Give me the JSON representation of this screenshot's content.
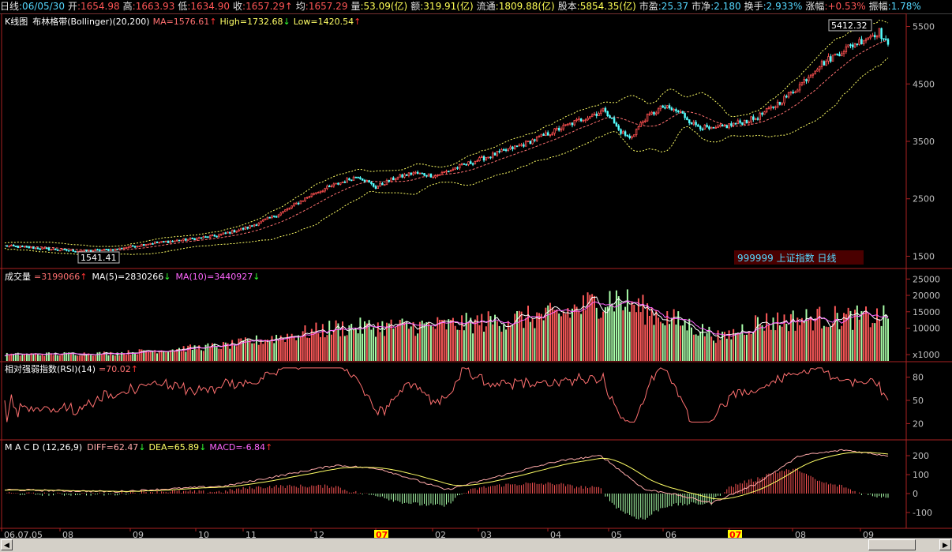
{
  "topbar": [
    {
      "label": "日线",
      "value": ":06/05/30",
      "color": "cyan"
    },
    {
      "label": "开",
      "value": ":1654.98",
      "color": "red"
    },
    {
      "label": "高",
      "value": ":1663.93",
      "color": "red"
    },
    {
      "label": "低",
      "value": ":1634.90",
      "color": "red"
    },
    {
      "label": "收",
      "value": ":1657.29",
      "color": "red",
      "arrow": "↑"
    },
    {
      "label": "均",
      "value": ":1657.29",
      "color": "red"
    },
    {
      "label": "量",
      "value": ":53.09(亿)",
      "color": "yellow"
    },
    {
      "label": "额",
      "value": ":319.91(亿)",
      "color": "yellow"
    },
    {
      "label": "流通",
      "value": ":1809.88(亿)",
      "color": "yellow"
    },
    {
      "label": "股本",
      "value": ":5854.35(亿)",
      "color": "yellow"
    },
    {
      "label": "市盈",
      "value": ":25.37",
      "color": "cyan"
    },
    {
      "label": "市净",
      "value": ":2.180",
      "color": "cyan"
    },
    {
      "label": "换手",
      "value": ":2.933%",
      "color": "cyan"
    },
    {
      "label": "涨幅",
      "value": ":+0.53%",
      "color": "red"
    },
    {
      "label": "振幅",
      "value": ":1.78%",
      "color": "cyan"
    }
  ],
  "price_panel": {
    "title": "K线图",
    "indicator_name": "布林格带(Bollinger)(20,200)",
    "ma_text": "MA=1576.61",
    "ma_arrow": "↑",
    "high_text": "High=1732.68",
    "high_arrow": "↓",
    "low_text": "Low=1420.54",
    "low_arrow": "↑",
    "max_label": "5412.32",
    "min_label": "1541.41",
    "stock_label": "999999  上证指数  日线",
    "y_ticks": [
      "5500",
      "4500",
      "3500",
      "2500",
      "1500"
    ]
  },
  "volume_panel": {
    "title": "成交量",
    "vol_text": "=3199066",
    "vol_arrow": "↑",
    "ma5_text": "MA(5)=2830266",
    "ma5_arrow": "↓",
    "ma10_text": "MA(10)=3440927",
    "ma10_arrow": "↓",
    "y_ticks": [
      "25000",
      "20000",
      "15000",
      "10000",
      "x1000"
    ]
  },
  "rsi_panel": {
    "title": "相对强弱指数(RSI)(14)",
    "rsi_text": "=70.02",
    "rsi_arrow": "↑",
    "y_ticks": [
      "80",
      "50",
      "20"
    ]
  },
  "macd_panel": {
    "title": "M A C D",
    "params": "(12,26,9)",
    "diff_text": "DIFF=62.47",
    "diff_arrow": "↓",
    "dea_text": "DEA=65.89",
    "dea_arrow": "↓",
    "macd_text": "MACD=-6.84",
    "macd_arrow": "↑",
    "y_ticks": [
      "200",
      "100",
      "0",
      "-100"
    ]
  },
  "x_axis": [
    "06.07.05",
    "08",
    "09",
    "10",
    "11",
    "12",
    "07",
    "02",
    "03",
    "04",
    "05",
    "06",
    "07",
    "08",
    "09"
  ],
  "colors": {
    "up": "#ff5050",
    "down": "#54ffff",
    "vol_up": "#ff5a5a",
    "vol_down": "#aaffaa",
    "ma": "#ff7070",
    "band": "#ffff66",
    "grid": "#aa2222",
    "macd_diff": "#ffaaaa",
    "macd_dea": "#ffff66",
    "rsi": "#ff7070"
  },
  "chart_data": {
    "type": "candlestick",
    "period": "daily",
    "x_range": [
      "06.07.05",
      "07.09"
    ],
    "price_ylim": [
      1300,
      5700
    ],
    "close_path": [
      [
        0,
        1680
      ],
      [
        15,
        1640
      ],
      [
        25,
        1610
      ],
      [
        35,
        1590
      ],
      [
        50,
        1620
      ],
      [
        65,
        1720
      ],
      [
        80,
        1780
      ],
      [
        95,
        1850
      ],
      [
        110,
        2000
      ],
      [
        125,
        2250
      ],
      [
        140,
        2600
      ],
      [
        150,
        2750
      ],
      [
        160,
        2900
      ],
      [
        168,
        2700
      ],
      [
        176,
        2850
      ],
      [
        185,
        2950
      ],
      [
        195,
        2900
      ],
      [
        205,
        3050
      ],
      [
        220,
        3250
      ],
      [
        235,
        3450
      ],
      [
        250,
        3700
      ],
      [
        262,
        3900
      ],
      [
        272,
        4050
      ],
      [
        278,
        3700
      ],
      [
        283,
        3550
      ],
      [
        290,
        3900
      ],
      [
        298,
        4100
      ],
      [
        306,
        4000
      ],
      [
        312,
        3800
      ],
      [
        320,
        3700
      ],
      [
        330,
        3800
      ],
      [
        340,
        3900
      ],
      [
        348,
        4100
      ],
      [
        358,
        4400
      ],
      [
        368,
        4800
      ],
      [
        380,
        5100
      ],
      [
        390,
        5300
      ],
      [
        396,
        5412
      ],
      [
        400,
        5150
      ]
    ],
    "volume_ylim": [
      0,
      27000
    ],
    "volume_envelope": [
      [
        0,
        2500
      ],
      [
        50,
        3000
      ],
      [
        100,
        6000
      ],
      [
        150,
        13000
      ],
      [
        200,
        14000
      ],
      [
        250,
        18000
      ],
      [
        275,
        25000
      ],
      [
        290,
        20000
      ],
      [
        310,
        14000
      ],
      [
        325,
        9000
      ],
      [
        340,
        15000
      ],
      [
        370,
        17000
      ],
      [
        400,
        17000
      ]
    ],
    "rsi_ylim": [
      0,
      100
    ],
    "macd_ylim": [
      -150,
      250
    ],
    "macd_diff_points": [
      [
        0,
        20
      ],
      [
        50,
        10
      ],
      [
        100,
        40
      ],
      [
        150,
        150
      ],
      [
        170,
        130
      ],
      [
        200,
        20
      ],
      [
        250,
        170
      ],
      [
        270,
        200
      ],
      [
        290,
        20
      ],
      [
        300,
        5
      ],
      [
        320,
        -50
      ],
      [
        340,
        50
      ],
      [
        360,
        200
      ],
      [
        380,
        230
      ],
      [
        400,
        200
      ]
    ]
  }
}
